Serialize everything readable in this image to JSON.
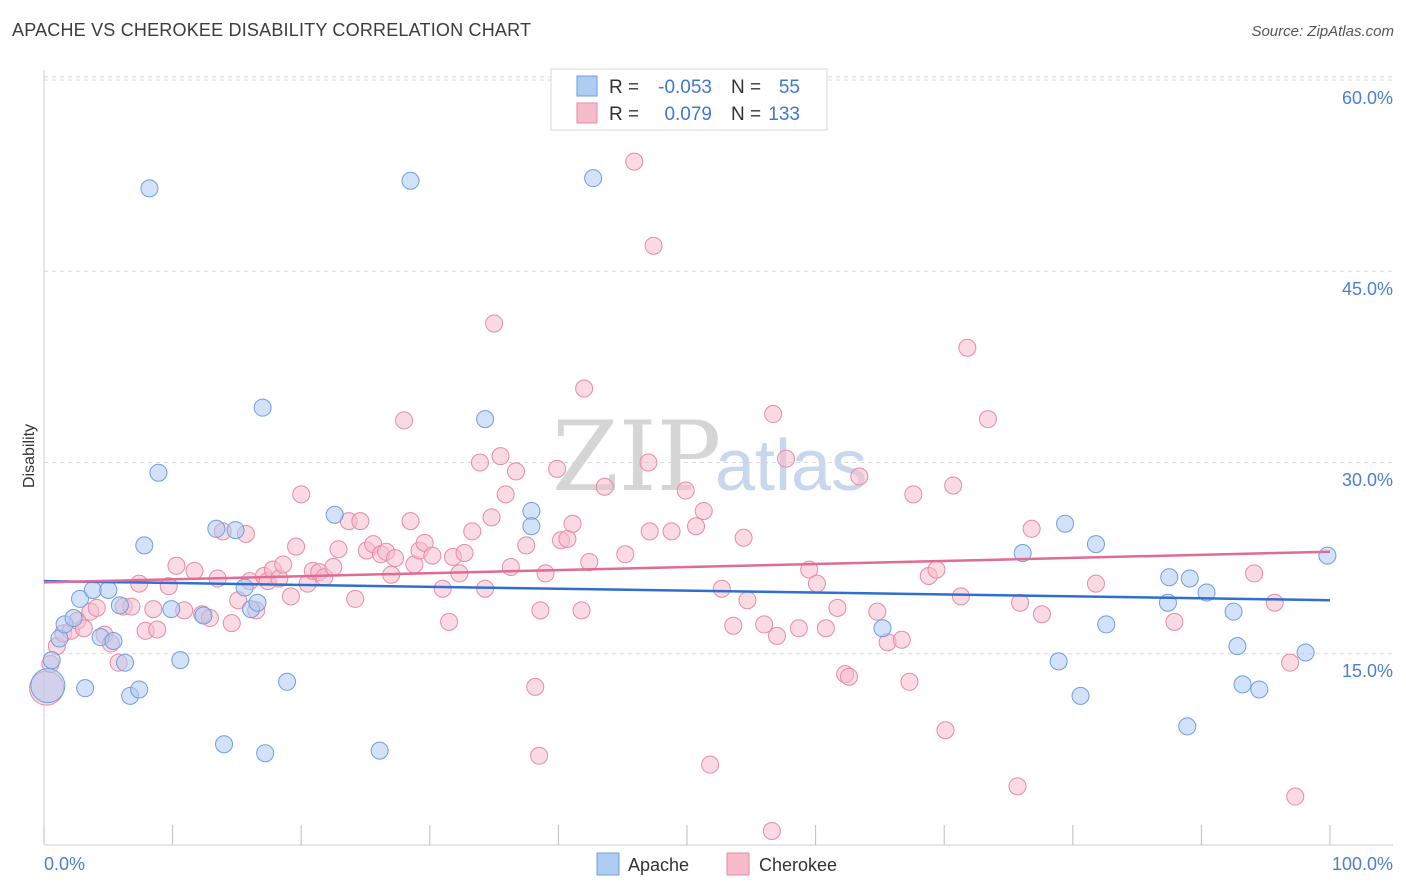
{
  "title": "APACHE VS CHEROKEE DISABILITY CORRELATION CHART",
  "source": "Source: ZipAtlas.com",
  "watermark": {
    "zip": "ZIP",
    "atlas": "atlas"
  },
  "colors": {
    "apache_fill": "#aecbf2",
    "apache_stroke": "#6e9ee0",
    "apache_line": "#2f6fcf",
    "cherokee_fill": "#f6bccc",
    "cherokee_stroke": "#e88aa6",
    "cherokee_line": "#e06b94",
    "tick_label": "#4a7fd0"
  },
  "legend": {
    "rows": [
      {
        "r_label": "R =",
        "r_value": "-0.053",
        "n_label": "N =",
        "n_value": "55"
      },
      {
        "r_label": "R =",
        "r_value": "0.079",
        "n_label": "N =",
        "n_value": "133"
      }
    ]
  },
  "bottom_legend": {
    "apache": "Apache",
    "cherokee": "Cherokee"
  },
  "chart_data": {
    "type": "scatter",
    "title": "APACHE VS CHEROKEE DISABILITY CORRELATION CHART",
    "xlabel": "",
    "ylabel": "Disability",
    "xlim": [
      0,
      100
    ],
    "ylim": [
      0,
      63
    ],
    "x_tick_labels": [
      "0.0%",
      "100.0%"
    ],
    "y_ticks": [
      15,
      30,
      45,
      60
    ],
    "y_tick_labels": [
      "15.0%",
      "30.0%",
      "45.0%",
      "60.0%"
    ],
    "grid": true,
    "legend_position": "top-center",
    "series": [
      {
        "name": "Apache",
        "R": -0.053,
        "N": 55,
        "trend": {
          "x": [
            0,
            100
          ],
          "y": [
            20.7,
            19.2
          ]
        },
        "points": [
          [
            0.3,
            12.5
          ],
          [
            0.6,
            14.5
          ],
          [
            1.2,
            16.2
          ],
          [
            1.6,
            17.3
          ],
          [
            2.3,
            17.8
          ],
          [
            2.8,
            19.3
          ],
          [
            3.2,
            12.3
          ],
          [
            3.8,
            20.0
          ],
          [
            4.4,
            16.3
          ],
          [
            5.0,
            20.0
          ],
          [
            5.4,
            16.0
          ],
          [
            5.9,
            18.8
          ],
          [
            6.3,
            14.3
          ],
          [
            6.7,
            11.7
          ],
          [
            7.4,
            12.2
          ],
          [
            7.8,
            23.5
          ],
          [
            8.2,
            51.5
          ],
          [
            8.9,
            29.2
          ],
          [
            9.9,
            18.5
          ],
          [
            10.6,
            14.5
          ],
          [
            12.4,
            18.0
          ],
          [
            13.4,
            24.8
          ],
          [
            14.0,
            7.9
          ],
          [
            14.9,
            24.7
          ],
          [
            15.6,
            20.2
          ],
          [
            16.1,
            18.5
          ],
          [
            16.6,
            19.0
          ],
          [
            17.0,
            34.3
          ],
          [
            17.2,
            7.2
          ],
          [
            18.9,
            12.8
          ],
          [
            22.6,
            25.9
          ],
          [
            26.1,
            7.4
          ],
          [
            28.5,
            52.1
          ],
          [
            34.3,
            33.4
          ],
          [
            37.9,
            26.2
          ],
          [
            37.9,
            25.0
          ],
          [
            42.7,
            52.3
          ],
          [
            65.2,
            17.0
          ],
          [
            76.1,
            22.9
          ],
          [
            78.9,
            14.4
          ],
          [
            79.4,
            25.2
          ],
          [
            80.6,
            11.7
          ],
          [
            81.8,
            23.6
          ],
          [
            82.6,
            17.3
          ],
          [
            87.4,
            19.0
          ],
          [
            87.5,
            21.0
          ],
          [
            88.9,
            9.3
          ],
          [
            89.1,
            20.9
          ],
          [
            90.4,
            19.8
          ],
          [
            92.5,
            18.3
          ],
          [
            92.8,
            15.6
          ],
          [
            93.2,
            12.6
          ],
          [
            94.5,
            12.2
          ],
          [
            98.1,
            15.1
          ],
          [
            99.8,
            22.7
          ]
        ]
      },
      {
        "name": "Cherokee",
        "R": 0.079,
        "N": 133,
        "trend": {
          "x": [
            0,
            100
          ],
          "y": [
            20.6,
            23.0
          ]
        },
        "points": [
          [
            0.2,
            12.3
          ],
          [
            0.5,
            14.2
          ],
          [
            1.0,
            15.6
          ],
          [
            1.5,
            16.6
          ],
          [
            2.1,
            16.8
          ],
          [
            2.6,
            17.6
          ],
          [
            3.1,
            17.0
          ],
          [
            3.6,
            18.3
          ],
          [
            4.1,
            18.6
          ],
          [
            4.7,
            16.5
          ],
          [
            5.2,
            15.8
          ],
          [
            5.8,
            14.3
          ],
          [
            6.2,
            18.7
          ],
          [
            6.8,
            18.7
          ],
          [
            7.4,
            20.5
          ],
          [
            7.9,
            16.8
          ],
          [
            8.5,
            18.5
          ],
          [
            8.8,
            16.9
          ],
          [
            9.7,
            20.3
          ],
          [
            10.3,
            21.9
          ],
          [
            10.9,
            18.4
          ],
          [
            11.7,
            21.5
          ],
          [
            12.3,
            18.1
          ],
          [
            12.9,
            17.8
          ],
          [
            13.5,
            20.9
          ],
          [
            13.9,
            24.6
          ],
          [
            14.6,
            17.4
          ],
          [
            15.1,
            19.2
          ],
          [
            15.7,
            24.4
          ],
          [
            16.0,
            20.7
          ],
          [
            16.5,
            18.4
          ],
          [
            17.1,
            21.1
          ],
          [
            17.4,
            20.7
          ],
          [
            17.8,
            21.6
          ],
          [
            18.3,
            20.9
          ],
          [
            18.6,
            22.0
          ],
          [
            19.2,
            19.5
          ],
          [
            19.6,
            23.4
          ],
          [
            20.0,
            27.5
          ],
          [
            20.5,
            20.5
          ],
          [
            20.9,
            21.5
          ],
          [
            21.4,
            21.4
          ],
          [
            21.8,
            21.0
          ],
          [
            22.5,
            21.8
          ],
          [
            22.9,
            23.2
          ],
          [
            23.7,
            25.4
          ],
          [
            24.2,
            19.3
          ],
          [
            24.6,
            25.4
          ],
          [
            25.1,
            23.1
          ],
          [
            25.6,
            23.6
          ],
          [
            26.2,
            22.8
          ],
          [
            26.6,
            23.0
          ],
          [
            27.0,
            21.2
          ],
          [
            27.3,
            22.5
          ],
          [
            28.0,
            33.3
          ],
          [
            28.5,
            25.4
          ],
          [
            28.8,
            22.0
          ],
          [
            29.2,
            23.1
          ],
          [
            29.6,
            23.7
          ],
          [
            30.2,
            22.7
          ],
          [
            31.0,
            20.1
          ],
          [
            31.5,
            17.5
          ],
          [
            31.8,
            22.6
          ],
          [
            32.3,
            21.3
          ],
          [
            32.7,
            22.9
          ],
          [
            33.3,
            24.6
          ],
          [
            33.9,
            30.0
          ],
          [
            34.3,
            20.1
          ],
          [
            34.8,
            25.7
          ],
          [
            35.0,
            40.9
          ],
          [
            35.5,
            30.5
          ],
          [
            35.9,
            27.5
          ],
          [
            36.3,
            21.8
          ],
          [
            36.7,
            29.3
          ],
          [
            37.5,
            23.5
          ],
          [
            38.2,
            12.4
          ],
          [
            38.6,
            18.4
          ],
          [
            39.0,
            21.3
          ],
          [
            39.9,
            29.5
          ],
          [
            40.2,
            23.9
          ],
          [
            40.7,
            24.0
          ],
          [
            41.1,
            25.2
          ],
          [
            41.8,
            18.4
          ],
          [
            42.0,
            35.8
          ],
          [
            42.4,
            22.2
          ],
          [
            43.6,
            28.1
          ],
          [
            45.2,
            22.8
          ],
          [
            45.9,
            53.6
          ],
          [
            47.0,
            30.0
          ],
          [
            47.1,
            24.6
          ],
          [
            47.4,
            47.0
          ],
          [
            48.8,
            24.6
          ],
          [
            49.9,
            27.8
          ],
          [
            50.7,
            25.0
          ],
          [
            51.3,
            26.2
          ],
          [
            51.8,
            6.3
          ],
          [
            52.7,
            20.1
          ],
          [
            53.6,
            17.2
          ],
          [
            54.4,
            24.1
          ],
          [
            54.7,
            19.2
          ],
          [
            56.0,
            17.3
          ],
          [
            56.6,
            1.1
          ],
          [
            56.7,
            33.8
          ],
          [
            57.0,
            16.4
          ],
          [
            57.7,
            30.3
          ],
          [
            58.7,
            17.0
          ],
          [
            59.5,
            21.6
          ],
          [
            60.1,
            20.5
          ],
          [
            60.8,
            17.0
          ],
          [
            61.7,
            18.6
          ],
          [
            62.3,
            13.4
          ],
          [
            62.6,
            13.2
          ],
          [
            63.4,
            28.9
          ],
          [
            64.8,
            18.3
          ],
          [
            65.6,
            15.9
          ],
          [
            66.7,
            16.1
          ],
          [
            67.3,
            12.8
          ],
          [
            67.6,
            27.5
          ],
          [
            68.8,
            21.1
          ],
          [
            69.4,
            21.6
          ],
          [
            70.1,
            9.0
          ],
          [
            70.7,
            28.2
          ],
          [
            71.3,
            19.5
          ],
          [
            71.8,
            39.0
          ],
          [
            73.4,
            33.4
          ],
          [
            75.7,
            4.6
          ],
          [
            75.9,
            19.0
          ],
          [
            76.8,
            24.8
          ],
          [
            77.6,
            18.1
          ],
          [
            81.8,
            20.5
          ],
          [
            87.9,
            17.5
          ],
          [
            94.1,
            21.3
          ],
          [
            95.7,
            19.0
          ],
          [
            96.9,
            14.3
          ],
          [
            97.3,
            3.8
          ],
          [
            38.5,
            7.0
          ]
        ]
      }
    ]
  }
}
